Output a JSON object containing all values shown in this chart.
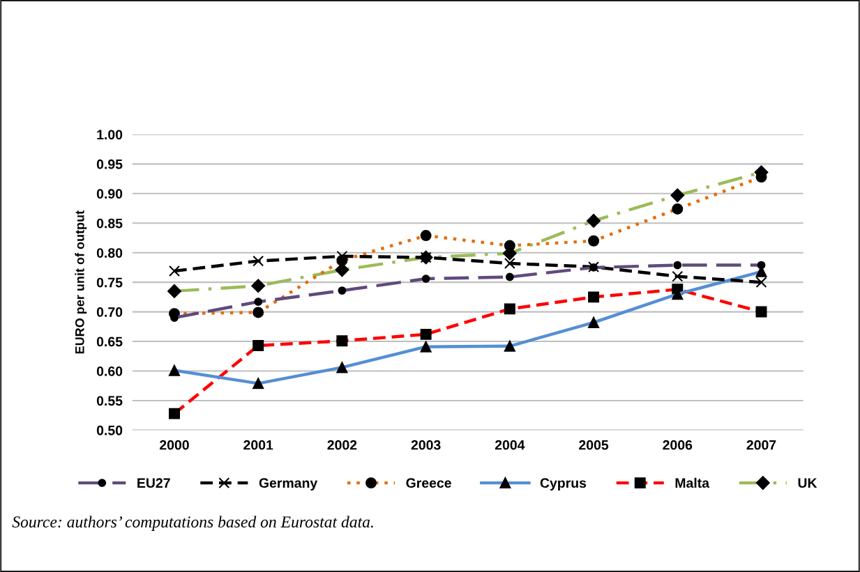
{
  "chart_data": {
    "type": "line",
    "ylabel": "EURO per unit of output",
    "categories": [
      "2000",
      "2001",
      "2002",
      "2003",
      "2004",
      "2005",
      "2006",
      "2007"
    ],
    "ylim": [
      0.5,
      1.0
    ],
    "yticks": [
      {
        "value": 0.5,
        "label": "0.50"
      },
      {
        "value": 0.55,
        "label": "0.55"
      },
      {
        "value": 0.6,
        "label": "0.60"
      },
      {
        "value": 0.65,
        "label": "0.65"
      },
      {
        "value": 0.7,
        "label": "0.70"
      },
      {
        "value": 0.75,
        "label": "0.75"
      },
      {
        "value": 0.8,
        "label": "0.80"
      },
      {
        "value": 0.85,
        "label": "0.85"
      },
      {
        "value": 0.9,
        "label": "0.90"
      },
      {
        "value": 0.95,
        "label": "0.95"
      },
      {
        "value": 1.0,
        "label": "1.00"
      }
    ],
    "grid": "y",
    "legend": "bottom",
    "annotations": [
      "Source: authors’ computations based on Eurostat data."
    ],
    "series": [
      {
        "name": "EU27",
        "color": "#604a7b",
        "marker": "circle",
        "line_style": "longdash",
        "values": [
          0.69,
          0.717,
          0.736,
          0.756,
          0.759,
          0.775,
          0.779,
          0.779
        ]
      },
      {
        "name": "Germany",
        "color": "#000000",
        "marker": "cross",
        "line_style": "dashed",
        "values": [
          0.769,
          0.786,
          0.794,
          0.792,
          0.782,
          0.776,
          0.76,
          0.75
        ]
      },
      {
        "name": "Greece",
        "color": "#e46c0a",
        "marker": "circle",
        "line_style": "dotted",
        "values": [
          0.697,
          0.699,
          0.787,
          0.829,
          0.812,
          0.82,
          0.874,
          0.928
        ]
      },
      {
        "name": "Cyprus",
        "color": "#558ed5",
        "marker": "triangle",
        "line_style": "solid",
        "values": [
          0.601,
          0.579,
          0.606,
          0.641,
          0.642,
          0.682,
          0.73,
          0.768
        ]
      },
      {
        "name": "Malta",
        "color": "#ff0000",
        "marker": "square",
        "line_style": "dashed",
        "values": [
          0.528,
          0.643,
          0.651,
          0.662,
          0.705,
          0.725,
          0.738,
          0.7
        ]
      },
      {
        "name": "UK",
        "color": "#9bbb59",
        "marker": "diamond",
        "line_style": "dashdot",
        "values": [
          0.735,
          0.744,
          0.771,
          0.792,
          0.799,
          0.854,
          0.897,
          0.936
        ]
      }
    ]
  }
}
